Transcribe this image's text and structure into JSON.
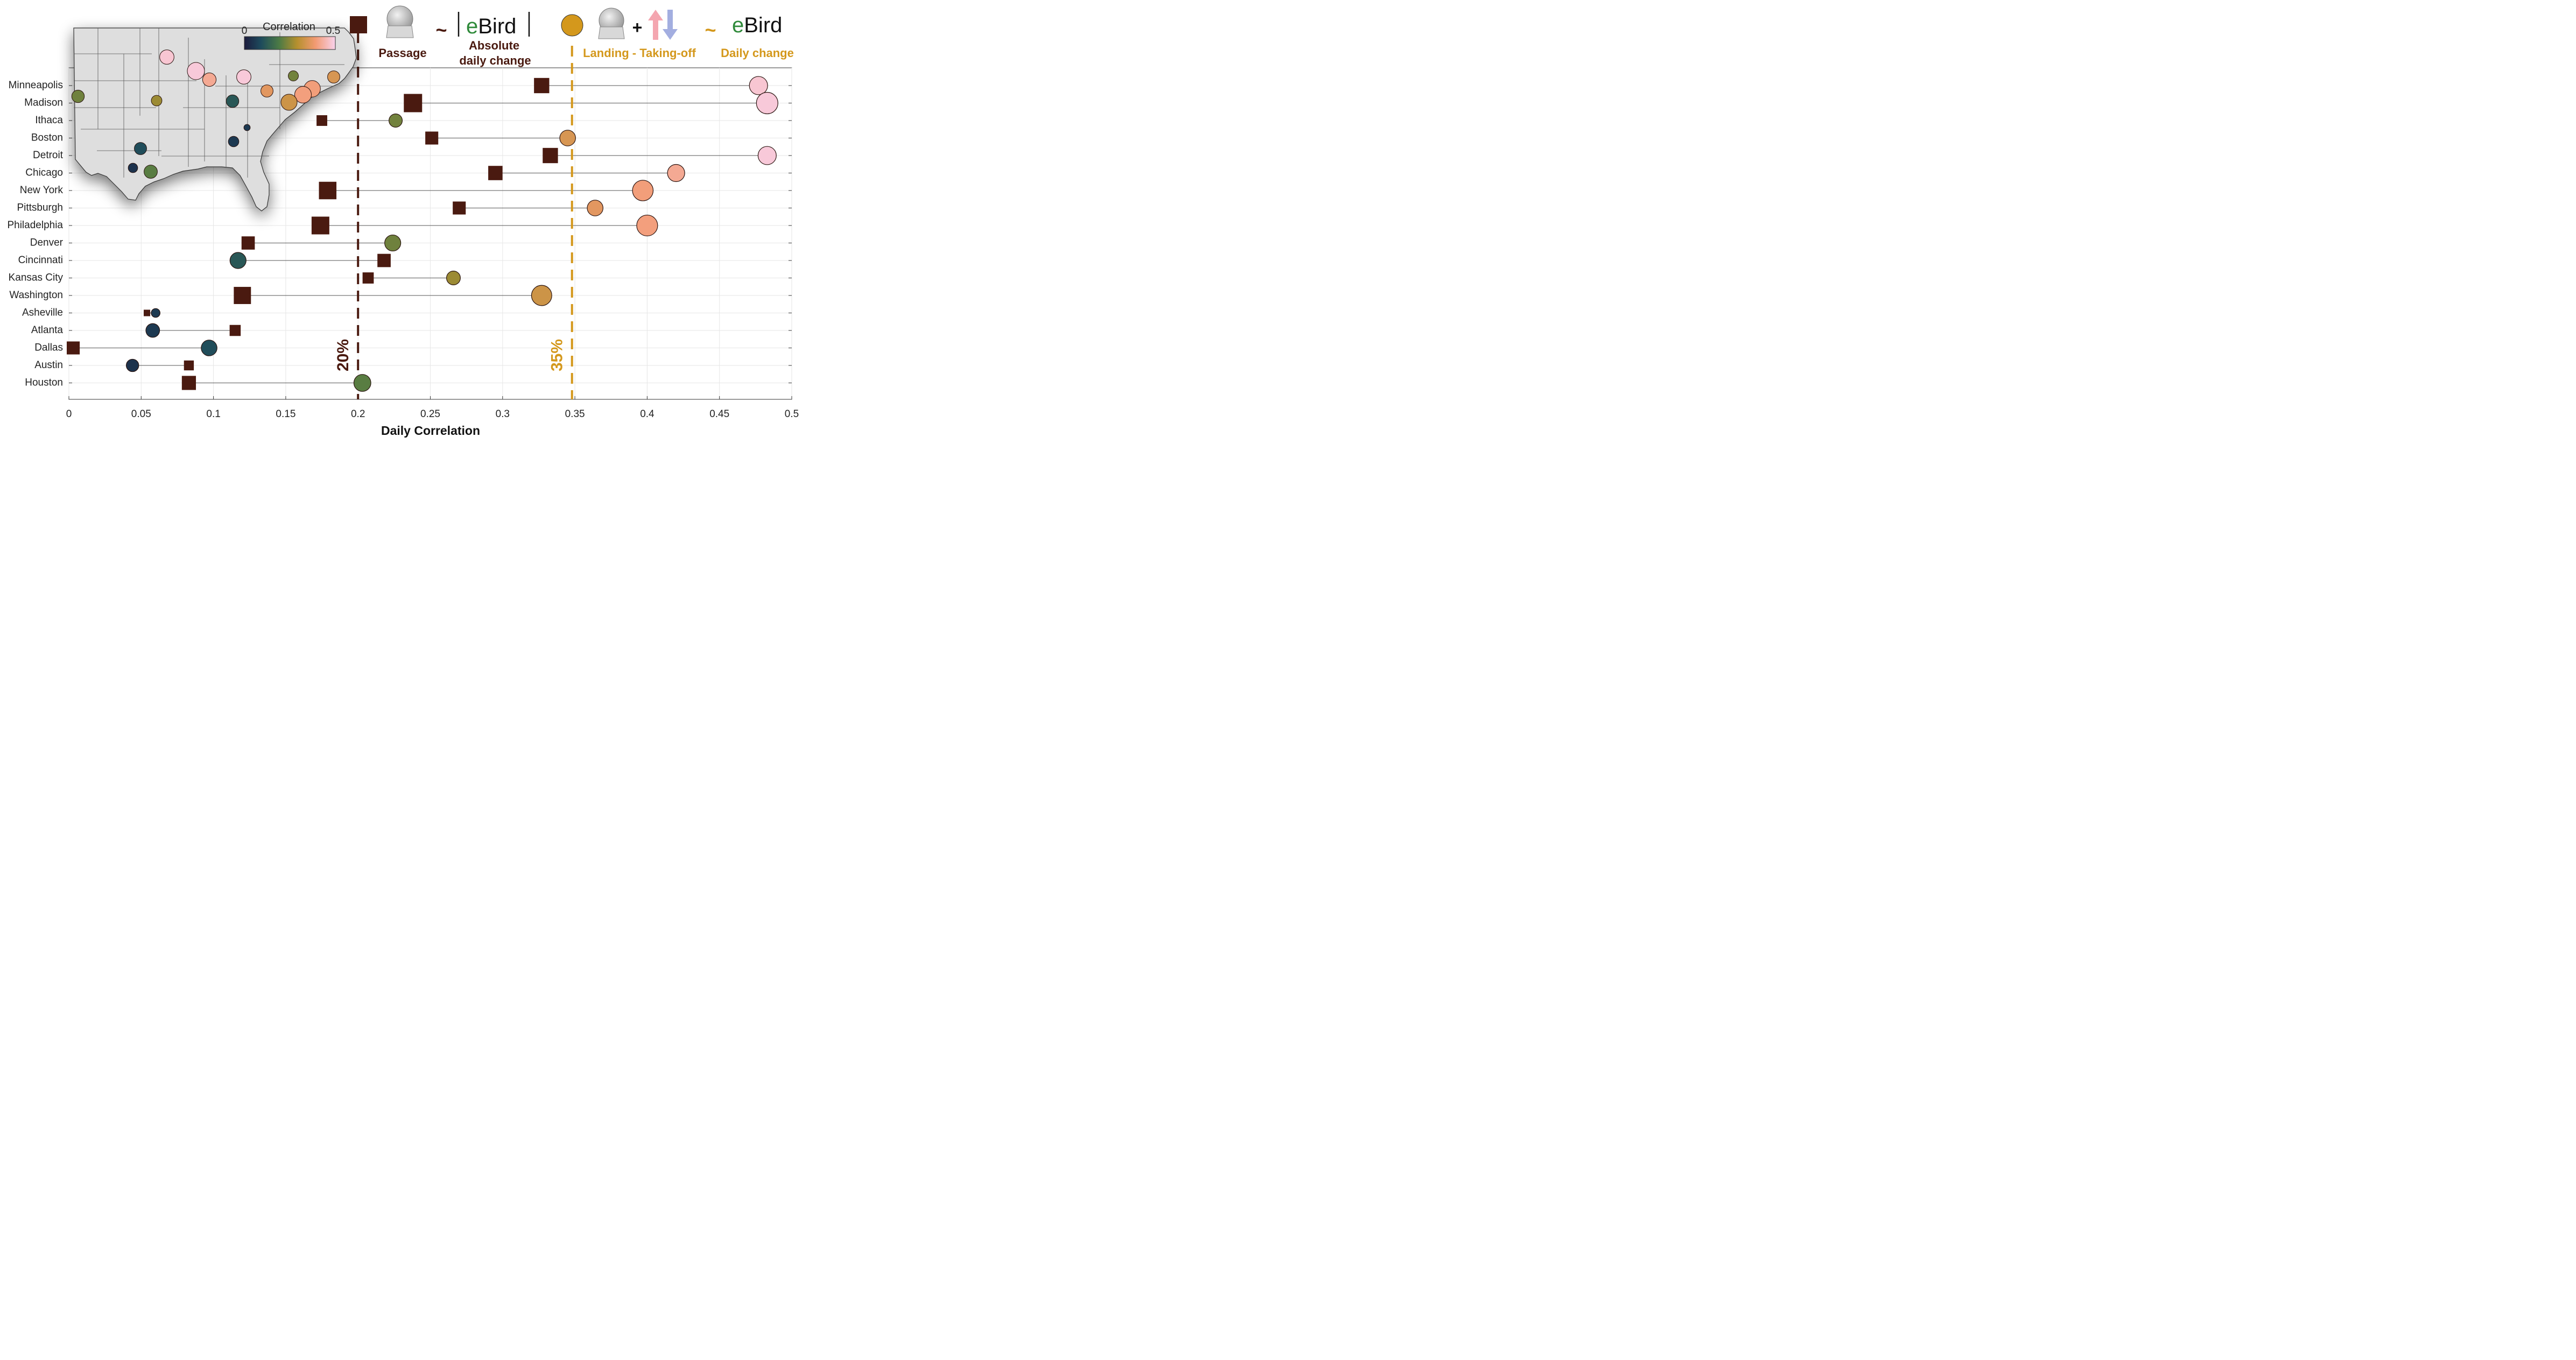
{
  "chart_data": {
    "type": "dumbbell",
    "xlabel": "Daily Correlation",
    "xlim": [
      0,
      0.5
    ],
    "xticks": [
      "0",
      "0.05",
      "0.1",
      "0.15",
      "0.2",
      "0.25",
      "0.3",
      "0.35",
      "0.4",
      "0.45",
      "0.5"
    ],
    "grid": true,
    "categories": [
      "Minneapolis",
      "Madison",
      "Ithaca",
      "Boston",
      "Detroit",
      "Chicago",
      "New York",
      "Pittsburgh",
      "Philadelphia",
      "Denver",
      "Cincinnati",
      "Kansas City",
      "Washington",
      "Asheville",
      "Atlanta",
      "Dallas",
      "Austin",
      "Houston"
    ],
    "series": [
      {
        "name": "Passage",
        "marker": "square",
        "color": "#4a1a10",
        "values": [
          0.327,
          0.238,
          0.175,
          0.251,
          0.333,
          0.295,
          0.179,
          0.27,
          0.174,
          0.124,
          0.218,
          0.207,
          0.12,
          0.054,
          0.115,
          0.003,
          0.083,
          0.083
        ]
      },
      {
        "name": "Landing - Taking-off",
        "marker": "circle",
        "values": [
          0.477,
          0.483,
          0.226,
          0.345,
          0.483,
          0.42,
          0.397,
          0.364,
          0.4,
          0.224,
          0.117,
          0.266,
          0.327,
          0.06,
          0.058,
          0.097,
          0.044,
          0.203
        ]
      }
    ],
    "reference_lines": [
      {
        "value": 0.2,
        "label": "20%",
        "color": "#4a1a10"
      },
      {
        "value": 0.348,
        "label": "35%",
        "color": "#d4981c"
      }
    ],
    "legend": {
      "passage_label": "Passage",
      "absolute_change_label_1": "Absolute",
      "absolute_change_label_2": "daily change",
      "landing_label": "Landing - Taking-off",
      "daily_change_label": "Daily change",
      "tilde": "~",
      "plus": "+",
      "ebird_e": "e",
      "ebird_rest": "Bird",
      "passage_color": "#4a1a10",
      "landing_color": "#d4981c",
      "up_arrow_color": "#f4a6b0",
      "down_arrow_color": "#a3aee0"
    },
    "inset_map": {
      "colorbar_title": "Correlation",
      "colorbar_min": "0",
      "colorbar_max": "0.5",
      "colorbar_range": [
        0,
        0.5
      ],
      "sites": [
        {
          "name": "Minneapolis",
          "value": 0.477
        },
        {
          "name": "Madison",
          "value": 0.483
        },
        {
          "name": "Ithaca",
          "value": 0.226
        },
        {
          "name": "Boston",
          "value": 0.345
        },
        {
          "name": "Detroit",
          "value": 0.483
        },
        {
          "name": "Chicago",
          "value": 0.42
        },
        {
          "name": "New York",
          "value": 0.397
        },
        {
          "name": "Pittsburgh",
          "value": 0.364
        },
        {
          "name": "Philadelphia",
          "value": 0.4
        },
        {
          "name": "Denver",
          "value": 0.224
        },
        {
          "name": "Cincinnati",
          "value": 0.117
        },
        {
          "name": "Kansas City",
          "value": 0.266
        },
        {
          "name": "Washington",
          "value": 0.327
        },
        {
          "name": "Asheville",
          "value": 0.06
        },
        {
          "name": "Atlanta",
          "value": 0.058
        },
        {
          "name": "Dallas",
          "value": 0.097
        },
        {
          "name": "Austin",
          "value": 0.044
        },
        {
          "name": "Houston",
          "value": 0.203
        }
      ]
    }
  }
}
